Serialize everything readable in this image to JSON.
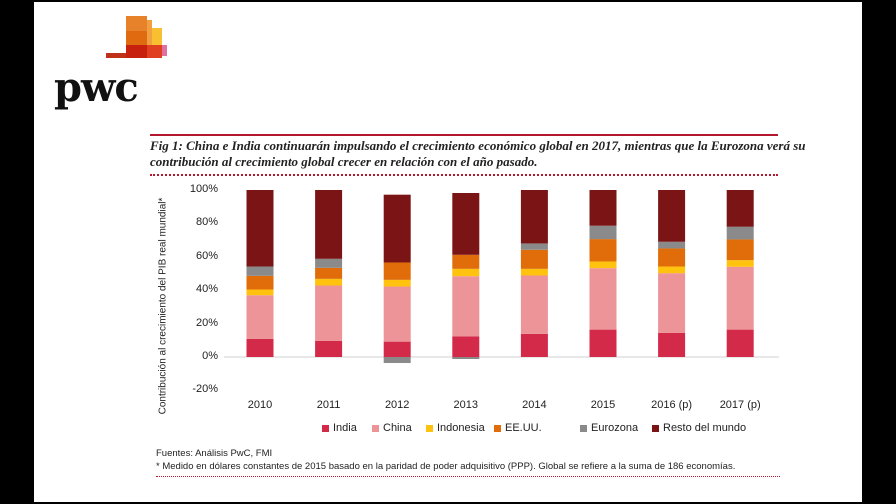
{
  "logo": {
    "text": "pwc"
  },
  "chart_data": {
    "type": "bar",
    "stacked": true,
    "title": "Fig 1: China e India continuarán impulsando el crecimiento económico global en 2017, mientras que la Eurozona verá su contribución al crecimiento global crecer en relación con el año pasado.",
    "ylabel": "Contribución al crecimiento del PIB real mundial*",
    "xlabel": "",
    "ylim": [
      -20,
      100
    ],
    "yticks": [
      "100%",
      "80%",
      "60%",
      "40%",
      "20%",
      "0%",
      "-20%"
    ],
    "ytick_values": [
      100,
      80,
      60,
      40,
      20,
      0,
      -20
    ],
    "categories": [
      "2010",
      "2011",
      "2012",
      "2013",
      "2014",
      "2015",
      "2016 (p)",
      "2017 (p)"
    ],
    "grid": false,
    "legend_position": "bottom",
    "series": [
      {
        "name": "India",
        "color": "#d42a4a",
        "values": [
          10.8,
          9.6,
          9.2,
          12.4,
          13.8,
          16.4,
          14.4,
          16.4
        ]
      },
      {
        "name": "China",
        "color": "#ec9498",
        "values": [
          26.2,
          33.2,
          33.0,
          36.0,
          35.0,
          36.8,
          35.8,
          37.6
        ]
      },
      {
        "name": "Indonesia",
        "color": "#ffc20e",
        "values": [
          3.4,
          4.0,
          4.0,
          4.4,
          4.0,
          4.0,
          4.0,
          4.0
        ]
      },
      {
        "name": "EE.UU.",
        "color": "#e06c0a",
        "values": [
          8.2,
          6.6,
          10.4,
          8.4,
          11.4,
          13.4,
          10.8,
          12.4
        ]
      },
      {
        "name": "Eurozona",
        "color": "#8a8a8a",
        "values": [
          5.6,
          5.4,
          -3.6,
          -1.2,
          3.8,
          8.0,
          4.0,
          7.6
        ]
      },
      {
        "name": "Resto del mundo",
        "color": "#7b1515",
        "values": [
          45.8,
          41.2,
          40.6,
          37.0,
          32.0,
          21.4,
          31.0,
          22.0
        ]
      }
    ]
  },
  "footnotes": {
    "source": "Fuentes: Análisis PwC, FMI",
    "note": "* Medido en dólares constantes de 2015 basado en la paridad de poder adquisitivo (PPP). Global se refiere a la suma de 186 economías."
  }
}
